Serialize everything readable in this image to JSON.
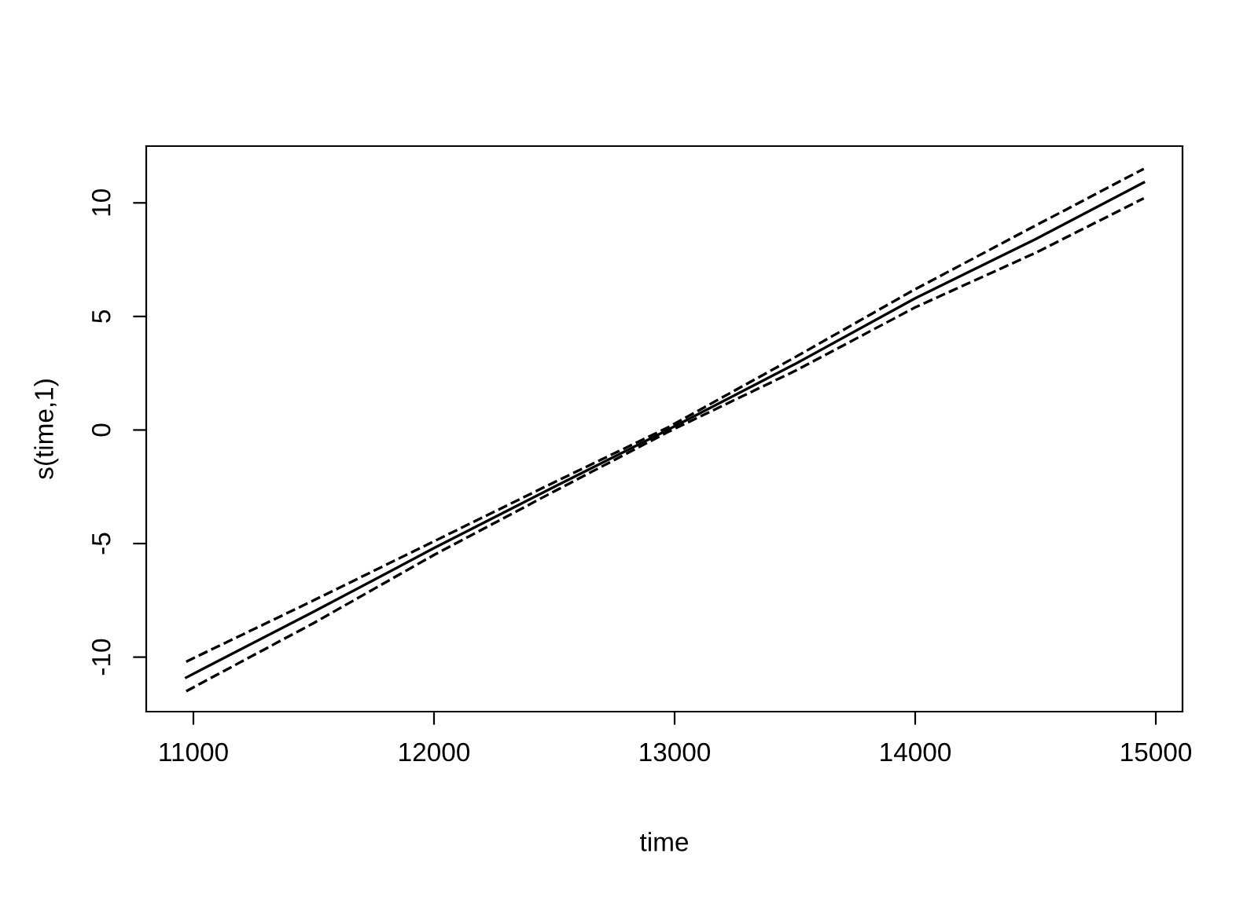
{
  "chart_data": {
    "type": "line",
    "xlabel": "time",
    "ylabel": "s(time,1)",
    "xlim": [
      10804,
      15111
    ],
    "ylim": [
      -12.4,
      12.5
    ],
    "xticks": [
      11000,
      12000,
      13000,
      14000,
      15000
    ],
    "yticks": [
      -10,
      -5,
      0,
      5,
      10
    ],
    "grid": false,
    "legend": false,
    "marker": "none",
    "series": [
      {
        "color": "#000000",
        "line_style": "solid",
        "x": [
          10970,
          11500,
          12000,
          12500,
          12970,
          13500,
          14000,
          14500,
          14950
        ],
        "values": [
          -10.9,
          -8.0,
          -5.2,
          -2.5,
          0.0,
          2.9,
          5.8,
          8.4,
          10.9
        ]
      },
      {
        "color": "#000000",
        "line_style": "dashed",
        "x": [
          10970,
          11500,
          12000,
          12500,
          12970,
          13500,
          14000,
          14500,
          14950
        ],
        "values": [
          -10.2,
          -7.5,
          -4.9,
          -2.3,
          0.1,
          3.2,
          6.2,
          9.0,
          11.5
        ]
      },
      {
        "color": "#000000",
        "line_style": "dashed",
        "x": [
          10970,
          11500,
          12000,
          12500,
          12970,
          13500,
          14000,
          14500,
          14950
        ],
        "values": [
          -11.5,
          -8.5,
          -5.5,
          -2.7,
          -0.1,
          2.6,
          5.4,
          7.8,
          10.2
        ]
      }
    ]
  }
}
